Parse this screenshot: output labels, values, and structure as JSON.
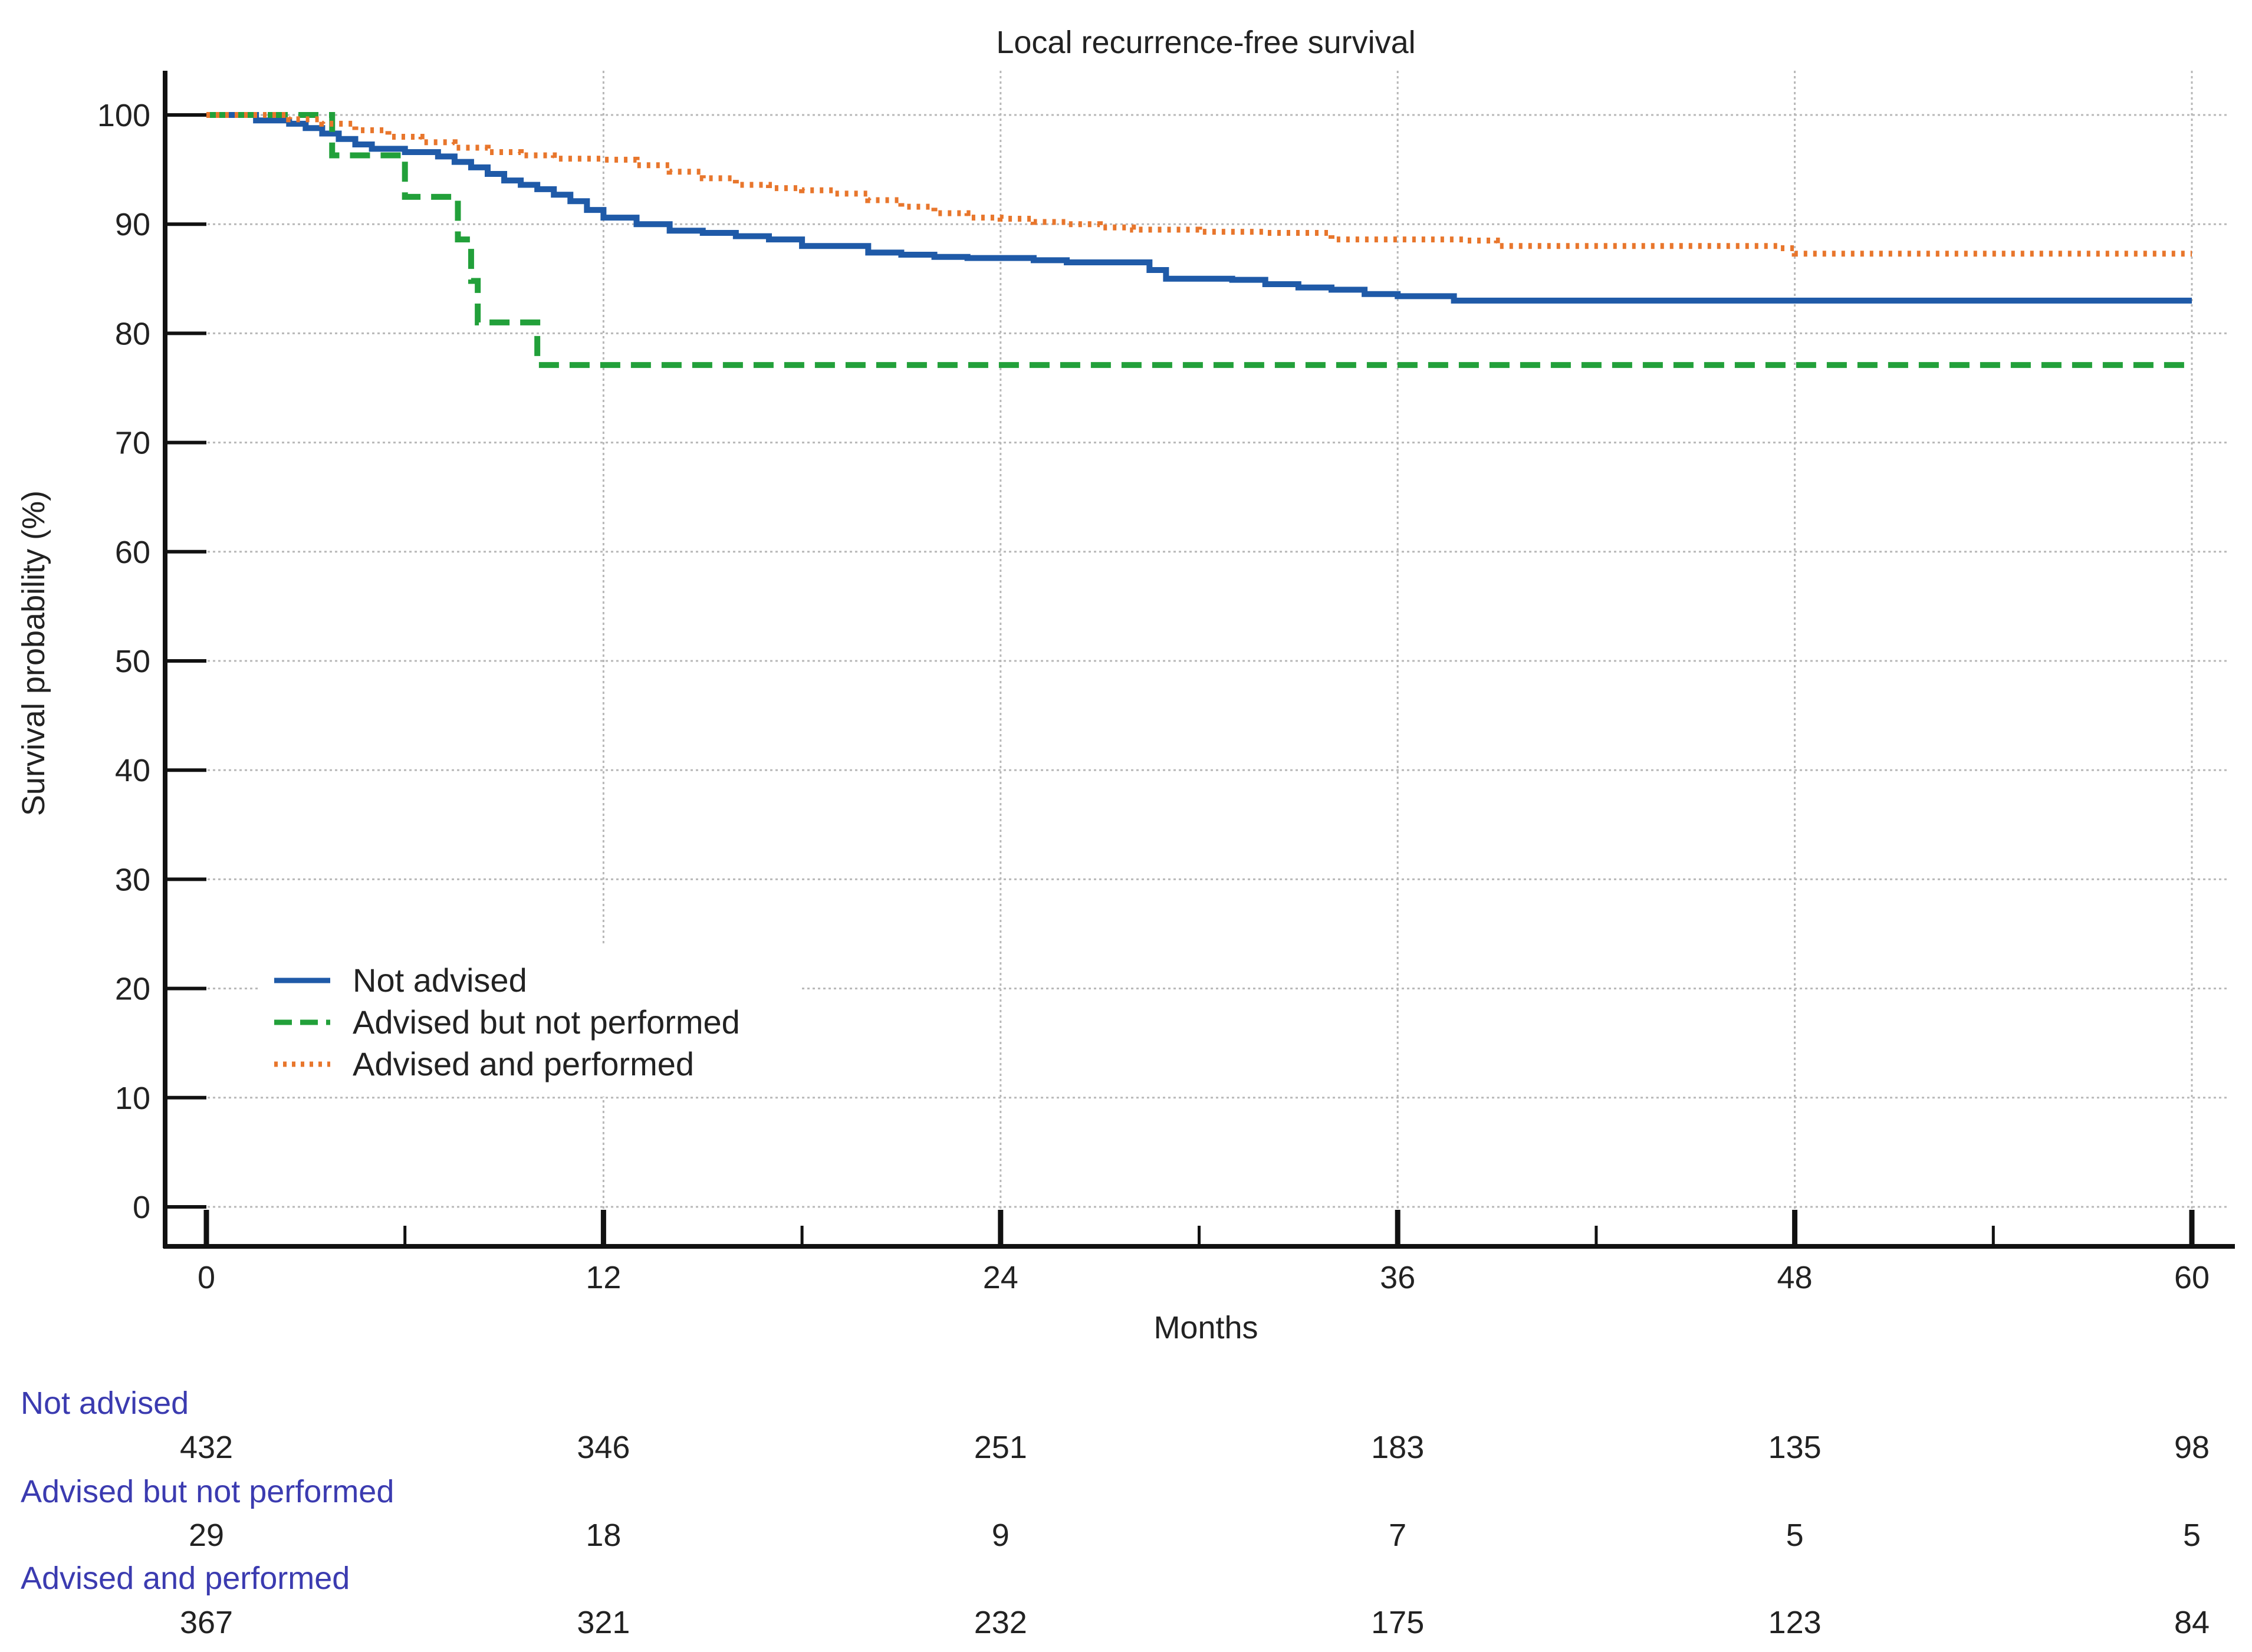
{
  "chart_data": {
    "type": "line",
    "step": true,
    "title": "Local recurrence-free survival",
    "xlabel": "Months",
    "ylabel": "Survival probability (%)",
    "xlim": [
      0,
      60
    ],
    "ylim": [
      0,
      100
    ],
    "x_ticks": [
      0,
      12,
      24,
      36,
      48,
      60
    ],
    "x_minor_ticks": [
      6,
      18,
      30,
      42,
      54
    ],
    "y_ticks": [
      0,
      10,
      20,
      30,
      40,
      50,
      60,
      70,
      80,
      90,
      100
    ],
    "grid": true,
    "legend_position": "bottom-left",
    "series": [
      {
        "name": "Not advised",
        "color": "#1f5aa8",
        "style": "solid",
        "x": [
          0,
          1.5,
          2.5,
          3.0,
          3.5,
          4.0,
          4.5,
          5.0,
          6.0,
          7.0,
          7.5,
          8.0,
          8.5,
          9.0,
          9.5,
          10.0,
          10.5,
          11.0,
          11.5,
          12.0,
          13.0,
          14.0,
          15.0,
          16.0,
          17.0,
          18.0,
          19.0,
          20.0,
          21.0,
          22.0,
          23.0,
          24.0,
          25.0,
          26.0,
          27.0,
          28.0,
          28.5,
          29.0,
          30.0,
          31.0,
          32.0,
          33.0,
          34.0,
          35.0,
          36.0,
          37.0,
          37.7,
          38.0,
          42.0,
          46.0,
          48.0,
          52.0,
          56.0,
          60.0
        ],
        "y": [
          100,
          99.5,
          99.2,
          98.8,
          98.3,
          97.8,
          97.3,
          96.9,
          96.6,
          96.2,
          95.7,
          95.2,
          94.6,
          94.0,
          93.6,
          93.2,
          92.7,
          92.1,
          91.3,
          90.6,
          90.0,
          89.4,
          89.2,
          88.9,
          88.6,
          88.0,
          88.0,
          87.4,
          87.2,
          87.0,
          86.9,
          86.9,
          86.7,
          86.5,
          86.5,
          86.5,
          85.8,
          85.0,
          85.0,
          84.9,
          84.5,
          84.2,
          84.0,
          83.6,
          83.4,
          83.4,
          83.0,
          83.0,
          83.0,
          83.0,
          83.0,
          83.0,
          83.0,
          83.0
        ]
      },
      {
        "name": "Advised but not performed",
        "color": "#22a03a",
        "style": "dashed",
        "x": [
          0,
          3.8,
          6.0,
          7.6,
          8.0,
          8.2,
          10.0,
          12.0,
          24.0,
          36.0,
          48.0,
          60.0
        ],
        "y": [
          100,
          96.3,
          92.5,
          88.6,
          84.8,
          81.0,
          77.1,
          77.1,
          77.1,
          77.1,
          77.1,
          77.1
        ]
      },
      {
        "name": "Advised and performed",
        "color": "#e8762c",
        "style": "dotted",
        "x": [
          0,
          2.5,
          3.5,
          4.5,
          5.5,
          6.5,
          7.5,
          8.5,
          9.5,
          10.5,
          12.0,
          13.0,
          14.0,
          15.0,
          16.0,
          17.0,
          18.0,
          19.0,
          20.0,
          21.0,
          22.0,
          23.0,
          24.0,
          25.0,
          26.0,
          27.0,
          28.0,
          30.0,
          32.0,
          33.5,
          34.0,
          36.0,
          38.0,
          39.0,
          42.0,
          46.0,
          47.5,
          48.0,
          52.0,
          56.0,
          60.0
        ],
        "y": [
          100,
          99.6,
          99.2,
          98.6,
          98.0,
          97.5,
          97.0,
          96.6,
          96.3,
          96.0,
          95.9,
          95.4,
          94.8,
          94.2,
          93.6,
          93.3,
          93.1,
          92.8,
          92.2,
          91.6,
          91.0,
          90.6,
          90.5,
          90.2,
          90.0,
          89.7,
          89.5,
          89.3,
          89.2,
          89.2,
          88.6,
          88.6,
          88.5,
          88.0,
          88.0,
          88.0,
          87.8,
          87.3,
          87.3,
          87.3,
          87.3
        ]
      }
    ],
    "risk_table": {
      "times": [
        0,
        12,
        24,
        36,
        48,
        60
      ],
      "rows": [
        {
          "label": "Not advised",
          "values": [
            432,
            346,
            251,
            183,
            135,
            98
          ]
        },
        {
          "label": "Advised but not performed",
          "values": [
            29,
            18,
            9,
            7,
            5,
            5
          ]
        },
        {
          "label": "Advised and performed",
          "values": [
            367,
            321,
            232,
            175,
            123,
            84
          ]
        }
      ]
    },
    "colors": {
      "axis": "#111111",
      "grid": "#b8b8b8",
      "text": "#222222",
      "risk_label": "#3b3bb0"
    }
  }
}
